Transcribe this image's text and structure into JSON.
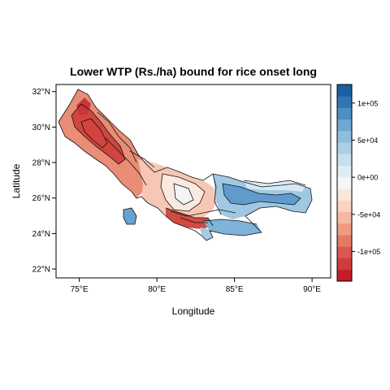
{
  "title": "Lower WTP (Rs./ha) bound for rice onset long",
  "xlabel": "Longitude",
  "ylabel": "Latitude",
  "chart_data": {
    "type": "heatmap",
    "title": "Lower WTP (Rs./ha) bound for rice onset long",
    "xlabel": "Longitude",
    "ylabel": "Latitude",
    "xlim": [
      73.5,
      91.2
    ],
    "ylim": [
      21.5,
      32.4
    ],
    "x_ticks": [
      75,
      80,
      85,
      90
    ],
    "x_tick_labels": [
      "75°E",
      "80°E",
      "85°E",
      "90°E"
    ],
    "y_ticks": [
      22,
      24,
      26,
      28,
      30,
      32
    ],
    "y_tick_labels": [
      "22°N",
      "24°N",
      "26°N",
      "28°N",
      "30°N",
      "32°N"
    ],
    "colorbar": {
      "range": [
        -140000,
        125000
      ],
      "ticks": [
        100000,
        50000,
        0,
        -50000,
        -100000
      ],
      "tick_labels": [
        "1e+05",
        "5e+04",
        "0e+00",
        "-5e+04",
        "-1e+05"
      ],
      "colors": [
        "#c51b2b",
        "#d03c3c",
        "#d9584f",
        "#e57a64",
        "#ee9a82",
        "#f4b9a4",
        "#f9d3c4",
        "#fbe7dc",
        "#f7f6f6",
        "#e0ecf4",
        "#c7dfee",
        "#aacfe6",
        "#8ebedd",
        "#6ea8d1",
        "#4b8fc3",
        "#2f76b3",
        "#1a5fa3"
      ]
    }
  }
}
